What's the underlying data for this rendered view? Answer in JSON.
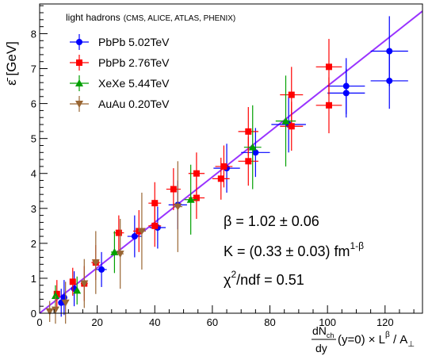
{
  "chart_data": {
    "type": "scatter",
    "ylabel": "ε̄ [GeV]",
    "xlabel": {
      "frac_num": "dN",
      "frac_num_sub": "ch",
      "frac_den": "dy",
      "rest": "(y=0) × L",
      "rest_sup": "β",
      "rest2": " / A",
      "rest2_sub": "⊥"
    },
    "xlim": [
      0,
      133
    ],
    "ylim": [
      0,
      8.85
    ],
    "xticks": [
      "0",
      "20",
      "40",
      "60",
      "80",
      "100",
      "120"
    ],
    "yticks": [
      "0",
      "1",
      "2",
      "3",
      "4",
      "5",
      "6",
      "7",
      "8"
    ],
    "legend": {
      "header_main": "light hadrons",
      "header_small": "(CMS, ALICE, ATLAS, PHENIX)",
      "placement": "top-left"
    },
    "fit": {
      "color": "#9933ff",
      "slope": 0.065,
      "intercept": 0.0,
      "beta_label": "β = 1.02 ± 0.06",
      "k_label": "K = (0.33 ± 0.03) fm",
      "k_sup": "1-β",
      "chi_label": "χ",
      "chi_sup": "2",
      "chi_rest": "/ndf = 0.51"
    },
    "series": [
      {
        "name": "PbPb 5.02TeV",
        "color": "#0000ff",
        "marker": "circle",
        "points": [
          [
            7.5,
            0.3,
            0.6,
            0.4
          ],
          [
            8.5,
            0.45,
            0.7,
            0.5
          ],
          [
            12,
            0.7,
            1.0,
            0.5
          ],
          [
            21.5,
            1.25,
            1.8,
            0.5
          ],
          [
            33,
            2.2,
            2.5,
            0.6
          ],
          [
            41,
            2.45,
            2.8,
            0.6
          ],
          [
            48,
            3.1,
            3.2,
            0.7
          ],
          [
            65,
            4.15,
            4.6,
            0.7
          ],
          [
            75,
            4.6,
            5.0,
            0.7
          ],
          [
            86.5,
            5.4,
            6.0,
            0.8
          ],
          [
            106.5,
            6.3,
            6.5,
            0.7
          ],
          [
            106.5,
            6.5,
            6.5,
            0.8
          ],
          [
            121.5,
            6.65,
            6.5,
            0.8
          ],
          [
            121.5,
            7.5,
            6.5,
            1.0
          ]
        ]
      },
      {
        "name": "PbPb 2.76TeV",
        "color": "#ff0000",
        "marker": "square",
        "points": [
          [
            6,
            0.55,
            0.5,
            0.4
          ],
          [
            11.5,
            0.9,
            1.0,
            0.4
          ],
          [
            15.5,
            0.85,
            1.2,
            0.5
          ],
          [
            19.5,
            1.45,
            1.5,
            0.5
          ],
          [
            27.5,
            2.3,
            1.8,
            0.5
          ],
          [
            34.5,
            2.35,
            2.0,
            0.6
          ],
          [
            40,
            3.15,
            2.2,
            0.6
          ],
          [
            40,
            2.5,
            2.2,
            0.6
          ],
          [
            46.5,
            3.55,
            2.5,
            0.6
          ],
          [
            54.5,
            4.0,
            2.8,
            0.6
          ],
          [
            54.5,
            3.3,
            2.8,
            0.6
          ],
          [
            63,
            3.85,
            3.0,
            0.6
          ],
          [
            64,
            4.2,
            3.0,
            0.6
          ],
          [
            72.5,
            4.35,
            3.5,
            0.7
          ],
          [
            72.5,
            5.2,
            3.5,
            0.7
          ],
          [
            87.5,
            5.35,
            4.0,
            0.7
          ],
          [
            87.5,
            6.25,
            4.0,
            0.8
          ],
          [
            100.5,
            5.95,
            4.5,
            0.8
          ],
          [
            100.5,
            7.05,
            4.5,
            0.8
          ]
        ]
      },
      {
        "name": "XeXe 5.44TeV",
        "color": "#00a000",
        "marker": "triangle",
        "points": [
          [
            5.5,
            0.5,
            0.4,
            0.3
          ],
          [
            13,
            0.65,
            0.8,
            0.4
          ],
          [
            26,
            1.75,
            1.2,
            0.6
          ],
          [
            52.5,
            3.25,
            2.2,
            1.0
          ],
          [
            74,
            4.75,
            3.0,
            1.2
          ],
          [
            85.5,
            5.5,
            3.5,
            1.3
          ]
        ]
      },
      {
        "name": "AuAu 0.20TeV",
        "color": "#996633",
        "marker": "triangle-down",
        "points": [
          [
            3.5,
            0.05,
            0.3,
            0.3
          ],
          [
            5.5,
            0.1,
            0.4,
            0.4
          ],
          [
            9,
            0.3,
            0.5,
            0.6
          ],
          [
            15.5,
            0.85,
            0.8,
            0.7
          ],
          [
            19.5,
            1.45,
            1.0,
            0.9
          ],
          [
            28,
            1.7,
            1.2,
            1.0
          ],
          [
            35.5,
            2.35,
            1.4,
            1.1
          ],
          [
            48,
            3.05,
            1.6,
            1.3
          ]
        ]
      }
    ]
  }
}
